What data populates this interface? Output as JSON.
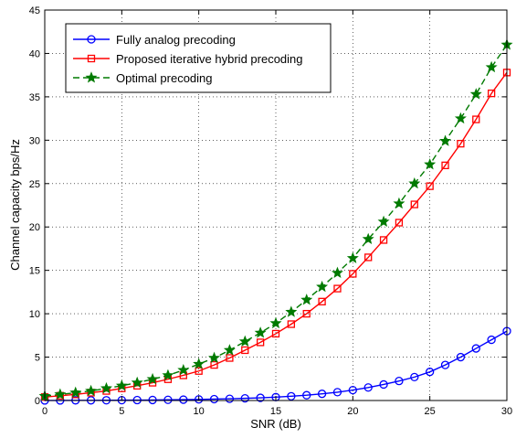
{
  "chart_data": {
    "type": "line",
    "xlabel": "SNR (dB)",
    "ylabel": "Channel capacity bps/Hz",
    "xlim": [
      0,
      30
    ],
    "ylim": [
      0,
      45
    ],
    "xticks": [
      0,
      5,
      10,
      15,
      20,
      25,
      30
    ],
    "yticks": [
      0,
      5,
      10,
      15,
      20,
      25,
      30,
      35,
      40,
      45
    ],
    "grid": true,
    "legend_position": "top-left",
    "x": [
      0,
      1,
      2,
      3,
      4,
      5,
      6,
      7,
      8,
      9,
      10,
      11,
      12,
      13,
      14,
      15,
      16,
      17,
      18,
      19,
      20,
      21,
      22,
      23,
      24,
      25,
      26,
      27,
      28,
      29,
      30
    ],
    "series": [
      {
        "name": "Fully analog precoding",
        "color": "#0000ff",
        "marker": "circle",
        "line_style": "solid",
        "values": [
          0.01,
          0.01,
          0.02,
          0.02,
          0.03,
          0.04,
          0.05,
          0.06,
          0.08,
          0.1,
          0.13,
          0.16,
          0.2,
          0.25,
          0.31,
          0.39,
          0.49,
          0.61,
          0.77,
          0.96,
          1.2,
          1.5,
          1.85,
          2.25,
          2.7,
          3.3,
          4.1,
          5.0,
          6.0,
          7.0,
          8.0
        ]
      },
      {
        "name": "Proposed iterative hybrid precoding",
        "color": "#ff0000",
        "marker": "square",
        "line_style": "solid",
        "values": [
          0.4,
          0.55,
          0.7,
          0.9,
          1.1,
          1.4,
          1.7,
          2.05,
          2.45,
          2.9,
          3.4,
          4.1,
          4.9,
          5.8,
          6.7,
          7.7,
          8.8,
          10.0,
          11.4,
          12.9,
          14.6,
          16.5,
          18.5,
          20.5,
          22.6,
          24.7,
          27.1,
          29.6,
          32.4,
          35.4,
          37.8
        ]
      },
      {
        "name": "Optimal precoding",
        "color": "#007a00",
        "marker": "star",
        "line_style": "dashed",
        "values": [
          0.5,
          0.7,
          0.9,
          1.1,
          1.4,
          1.7,
          2.05,
          2.45,
          2.9,
          3.5,
          4.2,
          4.9,
          5.8,
          6.8,
          7.8,
          8.9,
          10.2,
          11.6,
          13.1,
          14.7,
          16.4,
          18.6,
          20.6,
          22.7,
          25.0,
          27.2,
          29.9,
          32.5,
          35.3,
          38.4,
          41.0
        ]
      }
    ]
  }
}
